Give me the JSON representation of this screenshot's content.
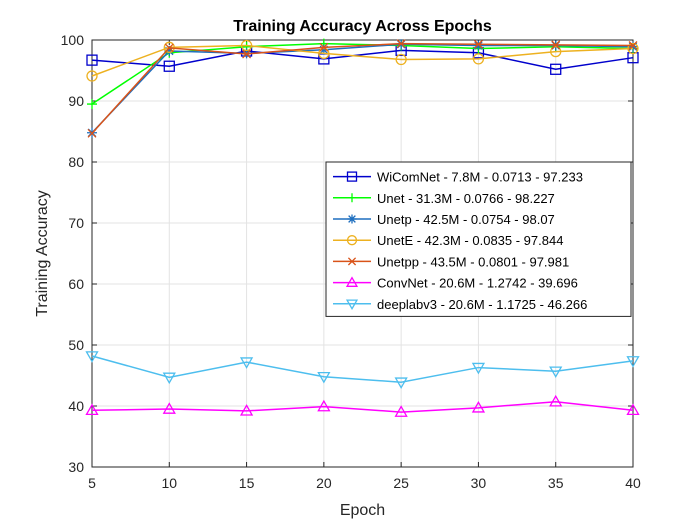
{
  "chart_data": {
    "type": "line",
    "title": "Training Accuracy Across Epochs",
    "xlabel": "Epoch",
    "ylabel": "Training Accuracy",
    "xlim": [
      5,
      40
    ],
    "ylim": [
      30,
      100
    ],
    "xticks": [
      "5",
      "10",
      "15",
      "20",
      "25",
      "30",
      "35",
      "40"
    ],
    "yticks": [
      "30",
      "40",
      "50",
      "60",
      "70",
      "80",
      "90",
      "100"
    ],
    "grid": true,
    "legend_position": "right",
    "x": [
      5,
      10,
      15,
      20,
      25,
      30,
      35,
      40
    ],
    "series": [
      {
        "name": "WiComNet - 7.8M - 0.0713 - 97.233",
        "color": "#0000cc",
        "marker": "square",
        "values": [
          96.7,
          95.7,
          98.2,
          96.9,
          98.3,
          97.9,
          95.2,
          97.1
        ]
      },
      {
        "name": "Unet - 31.3M - 0.0766 - 98.227",
        "color": "#00ff00",
        "marker": "plus",
        "values": [
          89.5,
          97.9,
          98.9,
          99.4,
          99.1,
          98.6,
          98.9,
          98.6
        ]
      },
      {
        "name": "Unetp - 42.5M - 0.0754 - 98.07",
        "color": "#1f6fbf",
        "marker": "asterisk",
        "values": [
          84.8,
          98.2,
          97.8,
          98.4,
          99.3,
          99.1,
          99.1,
          98.9
        ]
      },
      {
        "name": "UnetE - 42.3M - 0.0835 - 97.844",
        "color": "#edb120",
        "marker": "circle",
        "values": [
          94.1,
          98.8,
          99.1,
          97.8,
          96.8,
          96.9,
          98.1,
          98.6
        ]
      },
      {
        "name": "Unetpp - 43.5M - 0.0801 - 97.981",
        "color": "#d95319",
        "marker": "x",
        "values": [
          84.7,
          98.7,
          97.7,
          98.8,
          99.4,
          99.3,
          99.2,
          99.1
        ]
      },
      {
        "name": "ConvNet - 20.6M - 1.2742 - 39.696",
        "color": "#ff00ff",
        "marker": "triangle-up",
        "values": [
          39.3,
          39.5,
          39.2,
          39.9,
          39.0,
          39.7,
          40.7,
          39.3
        ]
      },
      {
        "name": "deeplabv3 - 20.6M - 1.1725 - 46.266",
        "color": "#4dbeee",
        "marker": "triangle-down",
        "values": [
          48.2,
          44.7,
          47.2,
          44.8,
          43.9,
          46.3,
          45.7,
          47.4
        ]
      }
    ]
  }
}
